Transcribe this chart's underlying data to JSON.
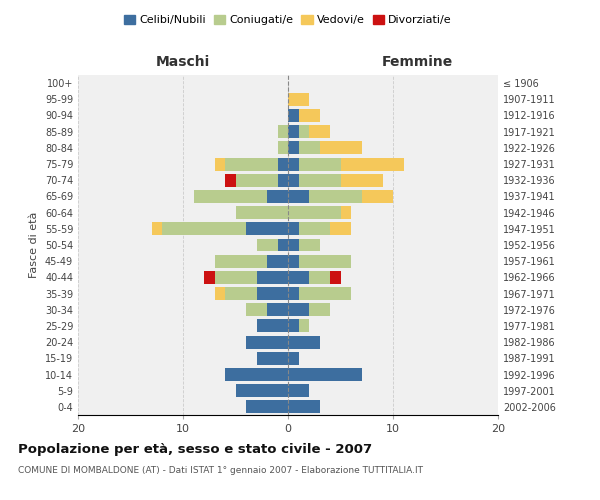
{
  "age_groups": [
    "0-4",
    "5-9",
    "10-14",
    "15-19",
    "20-24",
    "25-29",
    "30-34",
    "35-39",
    "40-44",
    "45-49",
    "50-54",
    "55-59",
    "60-64",
    "65-69",
    "70-74",
    "75-79",
    "80-84",
    "85-89",
    "90-94",
    "95-99",
    "100+"
  ],
  "birth_years": [
    "2002-2006",
    "1997-2001",
    "1992-1996",
    "1987-1991",
    "1982-1986",
    "1977-1981",
    "1972-1976",
    "1967-1971",
    "1962-1966",
    "1957-1961",
    "1952-1956",
    "1947-1951",
    "1942-1946",
    "1937-1941",
    "1932-1936",
    "1927-1931",
    "1922-1926",
    "1917-1921",
    "1912-1916",
    "1907-1911",
    "≤ 1906"
  ],
  "maschi": {
    "celibi": [
      4,
      5,
      6,
      3,
      4,
      3,
      2,
      3,
      3,
      2,
      1,
      4,
      0,
      2,
      1,
      1,
      0,
      0,
      0,
      0,
      0
    ],
    "coniugati": [
      0,
      0,
      0,
      0,
      0,
      0,
      2,
      3,
      4,
      5,
      2,
      8,
      5,
      7,
      4,
      5,
      1,
      1,
      0,
      0,
      0
    ],
    "vedovi": [
      0,
      0,
      0,
      0,
      0,
      0,
      0,
      1,
      0,
      0,
      0,
      1,
      0,
      0,
      0,
      1,
      0,
      0,
      0,
      0,
      0
    ],
    "divorziati": [
      0,
      0,
      0,
      0,
      0,
      0,
      0,
      0,
      1,
      0,
      0,
      0,
      0,
      0,
      1,
      0,
      0,
      0,
      0,
      0,
      0
    ]
  },
  "femmine": {
    "nubili": [
      3,
      2,
      7,
      1,
      3,
      1,
      2,
      1,
      2,
      1,
      1,
      1,
      0,
      2,
      1,
      1,
      1,
      1,
      1,
      0,
      0
    ],
    "coniugate": [
      0,
      0,
      0,
      0,
      0,
      1,
      2,
      5,
      2,
      5,
      2,
      3,
      5,
      5,
      4,
      4,
      2,
      1,
      0,
      0,
      0
    ],
    "vedove": [
      0,
      0,
      0,
      0,
      0,
      0,
      0,
      0,
      0,
      0,
      0,
      2,
      1,
      3,
      4,
      6,
      4,
      2,
      2,
      2,
      0
    ],
    "divorziate": [
      0,
      0,
      0,
      0,
      0,
      0,
      0,
      0,
      1,
      0,
      0,
      0,
      0,
      0,
      0,
      0,
      0,
      0,
      0,
      0,
      0
    ]
  },
  "colors": {
    "celibi_nubili": "#3d6e9f",
    "coniugati": "#b8cc8e",
    "vedovi": "#f5c85a",
    "divorziati": "#cc1111"
  },
  "xlim": 20,
  "title": "Popolazione per età, sesso e stato civile - 2007",
  "subtitle": "COMUNE DI MOMBALDONE (AT) - Dati ISTAT 1° gennaio 2007 - Elaborazione TUTTITALIA.IT",
  "ylabel_left": "Fasce di età",
  "xlabel_maschi": "Maschi",
  "xlabel_femmine": "Femmine",
  "bg_color": "#f0f0f0",
  "grid_color": "#cccccc"
}
